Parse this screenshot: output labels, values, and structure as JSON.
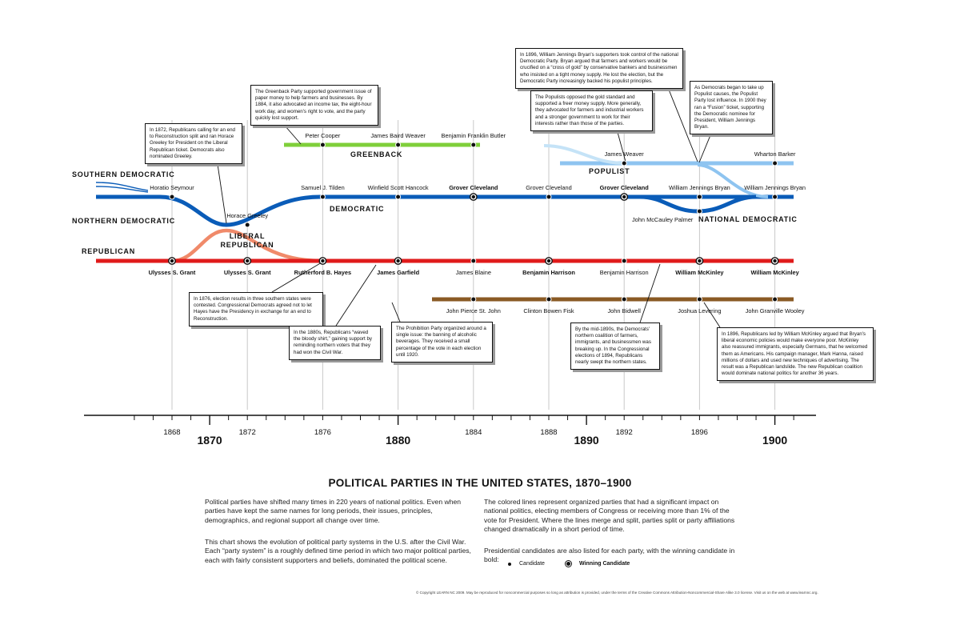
{
  "chart_data": {
    "type": "timeline",
    "title": "POLITICAL PARTIES IN THE UNITED STATES, 1870–1900",
    "xlim": [
      1865,
      1902
    ],
    "election_years": [
      1868,
      1872,
      1876,
      1880,
      1884,
      1888,
      1892,
      1896,
      1900
    ],
    "minor_tick_years": [
      1866,
      1867,
      1868,
      1869,
      1870,
      1871,
      1872,
      1873,
      1874,
      1875,
      1876,
      1877,
      1878,
      1879,
      1880,
      1881,
      1882,
      1883,
      1884,
      1885,
      1886,
      1887,
      1888,
      1889,
      1890,
      1891,
      1892,
      1893,
      1894,
      1895,
      1896,
      1897,
      1898,
      1899,
      1900,
      1901
    ],
    "axis_labels": [
      {
        "year": 1868,
        "text": "1868",
        "major": false
      },
      {
        "year": 1870,
        "text": "1870",
        "major": true
      },
      {
        "year": 1872,
        "text": "1872",
        "major": false
      },
      {
        "year": 1876,
        "text": "1876",
        "major": false
      },
      {
        "year": 1880,
        "text": "1880",
        "major": true
      },
      {
        "year": 1884,
        "text": "1884",
        "major": false
      },
      {
        "year": 1888,
        "text": "1888",
        "major": false
      },
      {
        "year": 1890,
        "text": "1890",
        "major": true
      },
      {
        "year": 1892,
        "text": "1892",
        "major": false
      },
      {
        "year": 1896,
        "text": "1896",
        "major": false
      },
      {
        "year": 1900,
        "text": "1900",
        "major": true
      }
    ],
    "parties": [
      {
        "name": "SOUTHERN DEMOCRATIC",
        "color": "#0a5cb8"
      },
      {
        "name": "NORTHERN DEMOCRATIC",
        "color": "#0a5cb8"
      },
      {
        "name": "DEMOCRATIC",
        "color": "#0a5cb8"
      },
      {
        "name": "REPUBLICAN",
        "color": "#e01b1b"
      },
      {
        "name": "LIBERAL REPUBLICAN",
        "color": "#f08a6a"
      },
      {
        "name": "GREENBACK",
        "color": "#7fcf3a"
      },
      {
        "name": "POPULIST",
        "color": "#8ec4f0"
      },
      {
        "name": "NATIONAL DEMOCRATIC",
        "color": "#0a5cb8"
      },
      {
        "name": "PROHIBITION",
        "color": "#8a5a24"
      }
    ],
    "party_labels": [
      {
        "text": "SOUTHERN DEMOCRATIC",
        "row": "south"
      },
      {
        "text": "NORTHERN DEMOCRATIC",
        "row": "north"
      },
      {
        "text": "REPUBLICAN",
        "row": "rep_label"
      },
      {
        "text": "LIBERAL",
        "row": "liberal1"
      },
      {
        "text": "REPUBLICAN",
        "row": "liberal2"
      },
      {
        "text": "DEMOCRATIC",
        "row": "dem"
      },
      {
        "text": "GREENBACK",
        "row": "greenback"
      },
      {
        "text": "POPULIST",
        "row": "populist"
      },
      {
        "text": "NATIONAL DEMOCRATIC",
        "row": "natdem"
      }
    ],
    "candidates": [
      {
        "name": "Horatio Seymour",
        "year": 1868,
        "party": "Democratic",
        "winner": false,
        "row": "dem",
        "pos": "above"
      },
      {
        "name": "Ulysses S. Grant",
        "year": 1868,
        "party": "Republican",
        "winner": true,
        "row": "rep",
        "pos": "below"
      },
      {
        "name": "Horace Greeley",
        "year": 1872,
        "party": "Liberal Republican",
        "winner": false,
        "row": "greeley",
        "pos": "above"
      },
      {
        "name": "Ulysses S. Grant",
        "year": 1872,
        "party": "Republican",
        "winner": true,
        "row": "rep",
        "pos": "below"
      },
      {
        "name": "Peter Cooper",
        "year": 1876,
        "party": "Greenback",
        "winner": false,
        "row": "greenback",
        "pos": "above"
      },
      {
        "name": "Samuel J. Tilden",
        "year": 1876,
        "party": "Democratic",
        "winner": false,
        "row": "dem",
        "pos": "above"
      },
      {
        "name": "Rutherford B. Hayes",
        "year": 1876,
        "party": "Republican",
        "winner": true,
        "row": "rep",
        "pos": "below"
      },
      {
        "name": "James Baird Weaver",
        "year": 1880,
        "party": "Greenback",
        "winner": false,
        "row": "greenback",
        "pos": "above"
      },
      {
        "name": "Winfield Scott Hancock",
        "year": 1880,
        "party": "Democratic",
        "winner": false,
        "row": "dem",
        "pos": "above"
      },
      {
        "name": "James Garfield",
        "year": 1880,
        "party": "Republican",
        "winner": true,
        "row": "rep",
        "pos": "below"
      },
      {
        "name": "Benjamin Franklin Butler",
        "year": 1884,
        "party": "Greenback",
        "winner": false,
        "row": "greenback",
        "pos": "above"
      },
      {
        "name": "Grover Cleveland",
        "year": 1884,
        "party": "Democratic",
        "winner": true,
        "row": "dem",
        "pos": "above"
      },
      {
        "name": "James Blaine",
        "year": 1884,
        "party": "Republican",
        "winner": false,
        "row": "rep",
        "pos": "below"
      },
      {
        "name": "John Pierce St. John",
        "year": 1884,
        "party": "Prohibition",
        "winner": false,
        "row": "prohib",
        "pos": "below"
      },
      {
        "name": "Grover Cleveland",
        "year": 1888,
        "party": "Democratic",
        "winner": false,
        "row": "dem",
        "pos": "above"
      },
      {
        "name": "Benjamin Harrison",
        "year": 1888,
        "party": "Republican",
        "winner": true,
        "row": "rep",
        "pos": "below"
      },
      {
        "name": "Clinton Bowen Fisk",
        "year": 1888,
        "party": "Prohibition",
        "winner": false,
        "row": "prohib",
        "pos": "below"
      },
      {
        "name": "James Weaver",
        "year": 1892,
        "party": "Populist",
        "winner": false,
        "row": "populist",
        "pos": "above"
      },
      {
        "name": "Grover Cleveland",
        "year": 1892,
        "party": "Democratic",
        "winner": true,
        "row": "dem",
        "pos": "above"
      },
      {
        "name": "Benjamin Harrison",
        "year": 1892,
        "party": "Republican",
        "winner": false,
        "row": "rep",
        "pos": "below"
      },
      {
        "name": "John Bidwell",
        "year": 1892,
        "party": "Prohibition",
        "winner": false,
        "row": "prohib",
        "pos": "below"
      },
      {
        "name": "William Jennings Bryan",
        "year": 1896,
        "party": "Democratic / Populist",
        "winner": false,
        "row": "dem",
        "pos": "above"
      },
      {
        "name": "John McCauley Palmer",
        "year": 1896,
        "party": "National Democratic",
        "winner": false,
        "row": "natdem",
        "pos": "left"
      },
      {
        "name": "William McKinley",
        "year": 1896,
        "party": "Republican",
        "winner": true,
        "row": "rep",
        "pos": "below"
      },
      {
        "name": "Joshua Levering",
        "year": 1896,
        "party": "Prohibition",
        "winner": false,
        "row": "prohib",
        "pos": "below"
      },
      {
        "name": "Wharton Barker",
        "year": 1900,
        "party": "Populist",
        "winner": false,
        "row": "populist",
        "pos": "above"
      },
      {
        "name": "William Jennings Bryan",
        "year": 1900,
        "party": "Democratic",
        "winner": false,
        "row": "dem",
        "pos": "above"
      },
      {
        "name": "William McKinley",
        "year": 1900,
        "party": "Republican",
        "winner": true,
        "row": "rep",
        "pos": "below"
      },
      {
        "name": "John Granville Wooley",
        "year": 1900,
        "party": "Prohibition",
        "winner": false,
        "row": "prohib",
        "pos": "below"
      }
    ]
  },
  "notes": [
    {
      "id": "n1872",
      "text": "In 1872, Republicans calling for an end to Reconstruction split and ran Horace Greeley for President on the Liberal Republican ticket. Democrats also nominated Greeley."
    },
    {
      "id": "ngreenback",
      "text": "The Greenback Party supported government issue of paper money to help farmers and businesses. By 1884, it also advocated an income tax, the eight-hour work day, and women's right to vote, and the party quickly lost support."
    },
    {
      "id": "n1876",
      "text": "In 1876, election results in three southern states were contested. Congressional Democrats agreed not to let Hayes have the Presidency in exchange for an end to Reconstruction."
    },
    {
      "id": "n1880s",
      "text": "In the 1880s, Republicans “waved the bloody shirt,” gaining support by reminding northern voters that they had won the Civil War."
    },
    {
      "id": "nprohib",
      "text": "The Prohibition Party organized around a single issue: the banning of alcoholic beverages. They received a small percentage of the vote in each election until 1920."
    },
    {
      "id": "n1896bryan",
      "text": "In 1896, William Jennings Bryan's supporters took control of the national Democratic Party. Bryan argued that farmers and workers would be crucified on a “cross of gold” by conservative bankers and businessmen who insisted on a tight money supply. He lost the election, but the Democratic Party increasingly backed his populist principles."
    },
    {
      "id": "npopulists",
      "text": "The Populists opposed the gold standard and supported a freer money supply. More generally, they advocated for farmers and industrial workers and a stronger government to work for their interests rather than those of the parties."
    },
    {
      "id": "nfusion",
      "text": "As Democrats began to take up Populist causes, the Populist Party lost influence. In 1900 they ran a “Fusion” ticket, supporting the Democratic nominee for President, William Jennings Bryan."
    },
    {
      "id": "n1890s",
      "text": "By the mid-1890s, the Democrats' northern coalition of farmers, immigrants, and businessmen was breaking up. In the Congressional elections of 1894, Republicans nearly swept the northern states."
    },
    {
      "id": "n1896mck",
      "text": "In 1896, Republicans led by William McKinley argued that Bryan's liberal economic policies would make everyone poor. McKinley also reassured immigrants, especially Germans, that he welcomed them as Americans. His campaign manager, Mark Hanna, raised millions of dollars and used new techniques of advertising. The result was a Republican landslide. The new Republican coalition would dominate national politics for another 36 years."
    }
  ],
  "footer": {
    "title": "POLITICAL PARTIES IN THE UNITED STATES, 1870–1900",
    "left_p1": "Political parties have shifted many times in 220 years of national politics. Even when parties have kept the same names for long periods, their issues, principles, demographics, and regional support all change over time.",
    "left_p2": "This chart shows the evolution of political party systems in the U.S. after the Civil War. Each “party system” is a roughly defined time period in which two major political parties, each with fairly consistent supporters and beliefs, dominated the political scene.",
    "right_p1": "The colored lines represent organized parties that had a significant impact on national politics, electing members of Congress or receiving more than 1% of the vote for President. Where the lines merge and split, parties split or party affiliations changed dramatically in a short period of time.",
    "right_p2": "Presidential candidates are also listed for each party, with the winning candidate in bold:",
    "legend_candidate": "Candidate",
    "legend_winner": "Winning Candidate",
    "copyright": "© Copyright LEARN NC 2009. May be reproduced for noncommercial purposes so long as attribution is provided, under the terms of the Creative Commons Attribution-Noncommercial-Share Alike 3.0 license. Visit us on the web at www.learnnc.org."
  }
}
